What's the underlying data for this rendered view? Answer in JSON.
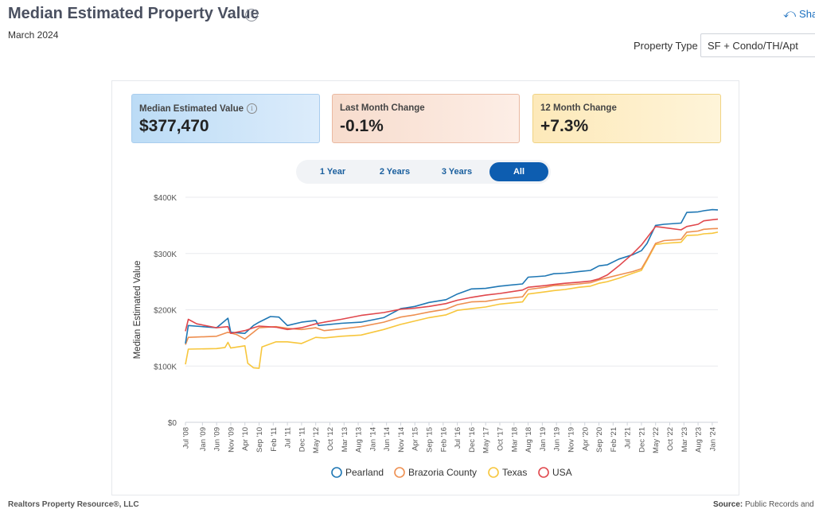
{
  "page": {
    "title": "Median Estimated Property Value",
    "subtitle": "March 2024",
    "share_label": "Sha",
    "property_type_label": "Property Type",
    "property_type_value": "SF + Condo/TH/Apt"
  },
  "cards": [
    {
      "label": "Median Estimated Value",
      "value": "$377,470"
    },
    {
      "label": "Last Month Change",
      "value": "-0.1%"
    },
    {
      "label": "12 Month Change",
      "value": "+7.3%"
    }
  ],
  "range_buttons": [
    "1 Year",
    "2 Years",
    "3 Years",
    "All"
  ],
  "range_active": "All",
  "footer": {
    "left": "Realtors Property Resource®, LLC",
    "right_label": "Source:",
    "right_text": "Public Records and"
  },
  "colors": {
    "Pearland": "#1f77b4",
    "Brazoria County": "#ee8f50",
    "Texas": "#f7c63c",
    "USA": "#e0474c"
  },
  "chart_data": {
    "type": "line",
    "ylabel": "Median Estimated Value",
    "xlabel": "",
    "ylim": [
      0,
      400000
    ],
    "y_ticks": [
      0,
      100000,
      200000,
      300000,
      400000
    ],
    "y_tick_labels": [
      "$0",
      "$100K",
      "$200K",
      "$300K",
      "$400K"
    ],
    "x_tick_labels": [
      "Jul '08",
      "Jan '09",
      "Jun '09",
      "Nov '09",
      "Apr '10",
      "Sep '10",
      "Feb '11",
      "Jul '11",
      "Dec '11",
      "May '12",
      "Oct '12",
      "Mar '13",
      "Aug '13",
      "Jan '14",
      "Jun '14",
      "Nov '14",
      "Apr '15",
      "Sep '15",
      "Feb '16",
      "Jul '16",
      "Dec '16",
      "May '17",
      "Oct '17",
      "Mar '18",
      "Aug '18",
      "Jan '19",
      "Jun '19",
      "Nov '19",
      "Apr '20",
      "Sep '20",
      "Feb '21",
      "Jul '21",
      "Dec '21",
      "May '22",
      "Oct '22",
      "Mar '23",
      "Aug '23",
      "Jan '24"
    ],
    "x_start": "2008-07",
    "x_end": "2024-03",
    "grid": "horizontal",
    "legend": "bottom",
    "series": [
      {
        "name": "Pearland",
        "points": [
          [
            "2008-07",
            140000
          ],
          [
            "2008-08",
            172000
          ],
          [
            "2009-06",
            168000
          ],
          [
            "2009-10",
            185000
          ],
          [
            "2009-11",
            160000
          ],
          [
            "2010-04",
            158000
          ],
          [
            "2010-07",
            172000
          ],
          [
            "2010-09",
            178000
          ],
          [
            "2011-01",
            188000
          ],
          [
            "2011-04",
            187000
          ],
          [
            "2011-07",
            172000
          ],
          [
            "2011-12",
            178000
          ],
          [
            "2012-05",
            181000
          ],
          [
            "2012-06",
            172000
          ],
          [
            "2013-02",
            176000
          ],
          [
            "2013-09",
            178000
          ],
          [
            "2014-05",
            186000
          ],
          [
            "2014-11",
            202000
          ],
          [
            "2015-04",
            206000
          ],
          [
            "2015-09",
            213000
          ],
          [
            "2016-03",
            218000
          ],
          [
            "2016-07",
            228000
          ],
          [
            "2016-12",
            237000
          ],
          [
            "2017-05",
            238000
          ],
          [
            "2017-10",
            242000
          ],
          [
            "2018-06",
            246000
          ],
          [
            "2018-08",
            258000
          ],
          [
            "2019-02",
            260000
          ],
          [
            "2019-05",
            264000
          ],
          [
            "2019-09",
            265000
          ],
          [
            "2020-02",
            268000
          ],
          [
            "2020-06",
            270000
          ],
          [
            "2020-09",
            278000
          ],
          [
            "2020-12",
            280000
          ],
          [
            "2021-04",
            290000
          ],
          [
            "2021-09",
            298000
          ],
          [
            "2021-12",
            305000
          ],
          [
            "2022-02",
            318000
          ],
          [
            "2022-05",
            350000
          ],
          [
            "2022-08",
            352000
          ],
          [
            "2023-02",
            354000
          ],
          [
            "2023-04",
            373000
          ],
          [
            "2023-08",
            374000
          ],
          [
            "2023-10",
            376000
          ],
          [
            "2024-01",
            378000
          ],
          [
            "2024-03",
            377470
          ]
        ]
      },
      {
        "name": "Brazoria County",
        "points": [
          [
            "2008-07",
            138000
          ],
          [
            "2008-08",
            151000
          ],
          [
            "2009-06",
            153000
          ],
          [
            "2009-10",
            160000
          ],
          [
            "2010-01",
            156000
          ],
          [
            "2010-04",
            148000
          ],
          [
            "2010-09",
            168000
          ],
          [
            "2011-03",
            170000
          ],
          [
            "2011-07",
            167000
          ],
          [
            "2011-12",
            165000
          ],
          [
            "2012-05",
            168000
          ],
          [
            "2012-08",
            163000
          ],
          [
            "2013-02",
            166000
          ],
          [
            "2013-09",
            170000
          ],
          [
            "2014-05",
            178000
          ],
          [
            "2014-11",
            187000
          ],
          [
            "2015-04",
            191000
          ],
          [
            "2015-09",
            196000
          ],
          [
            "2016-03",
            201000
          ],
          [
            "2016-07",
            209000
          ],
          [
            "2016-12",
            214000
          ],
          [
            "2017-05",
            215000
          ],
          [
            "2017-10",
            219000
          ],
          [
            "2018-06",
            223000
          ],
          [
            "2018-08",
            236000
          ],
          [
            "2019-02",
            240000
          ],
          [
            "2019-05",
            243000
          ],
          [
            "2019-09",
            244000
          ],
          [
            "2020-02",
            246000
          ],
          [
            "2020-06",
            248000
          ],
          [
            "2020-09",
            253000
          ],
          [
            "2020-12",
            257000
          ],
          [
            "2021-04",
            262000
          ],
          [
            "2021-09",
            268000
          ],
          [
            "2021-12",
            273000
          ],
          [
            "2022-02",
            290000
          ],
          [
            "2022-05",
            318000
          ],
          [
            "2022-08",
            323000
          ],
          [
            "2023-02",
            325000
          ],
          [
            "2023-04",
            338000
          ],
          [
            "2023-08",
            340000
          ],
          [
            "2023-10",
            343000
          ],
          [
            "2024-01",
            344000
          ],
          [
            "2024-03",
            344500
          ]
        ]
      },
      {
        "name": "Texas",
        "points": [
          [
            "2008-07",
            103000
          ],
          [
            "2008-08",
            130000
          ],
          [
            "2009-06",
            131000
          ],
          [
            "2009-09",
            133000
          ],
          [
            "2009-10",
            142000
          ],
          [
            "2009-11",
            132000
          ],
          [
            "2010-04",
            136000
          ],
          [
            "2010-05",
            105000
          ],
          [
            "2010-07",
            97000
          ],
          [
            "2010-09",
            96000
          ],
          [
            "2010-10",
            134000
          ],
          [
            "2011-03",
            143000
          ],
          [
            "2011-07",
            143000
          ],
          [
            "2011-12",
            140000
          ],
          [
            "2012-05",
            151000
          ],
          [
            "2012-08",
            150000
          ],
          [
            "2013-02",
            153000
          ],
          [
            "2013-09",
            155000
          ],
          [
            "2014-05",
            165000
          ],
          [
            "2014-11",
            174000
          ],
          [
            "2015-04",
            180000
          ],
          [
            "2015-09",
            186000
          ],
          [
            "2016-03",
            191000
          ],
          [
            "2016-07",
            199000
          ],
          [
            "2016-12",
            202000
          ],
          [
            "2017-05",
            205000
          ],
          [
            "2017-10",
            210000
          ],
          [
            "2018-06",
            214000
          ],
          [
            "2018-08",
            228000
          ],
          [
            "2019-02",
            232000
          ],
          [
            "2019-05",
            234000
          ],
          [
            "2019-09",
            236000
          ],
          [
            "2020-02",
            240000
          ],
          [
            "2020-06",
            242000
          ],
          [
            "2020-09",
            247000
          ],
          [
            "2020-12",
            250000
          ],
          [
            "2021-04",
            256000
          ],
          [
            "2021-09",
            265000
          ],
          [
            "2021-12",
            270000
          ],
          [
            "2022-02",
            288000
          ],
          [
            "2022-05",
            316000
          ],
          [
            "2022-08",
            318000
          ],
          [
            "2023-02",
            320000
          ],
          [
            "2023-04",
            332000
          ],
          [
            "2023-08",
            333000
          ],
          [
            "2023-10",
            335000
          ],
          [
            "2024-01",
            336000
          ],
          [
            "2024-03",
            338000
          ]
        ]
      },
      {
        "name": "USA",
        "points": [
          [
            "2008-07",
            162000
          ],
          [
            "2008-08",
            183000
          ],
          [
            "2008-11",
            175000
          ],
          [
            "2009-06",
            168000
          ],
          [
            "2009-10",
            170000
          ],
          [
            "2009-11",
            158000
          ],
          [
            "2010-04",
            163000
          ],
          [
            "2010-07",
            168000
          ],
          [
            "2010-09",
            171000
          ],
          [
            "2011-03",
            169000
          ],
          [
            "2011-07",
            165000
          ],
          [
            "2011-12",
            168000
          ],
          [
            "2012-05",
            175000
          ],
          [
            "2012-08",
            178000
          ],
          [
            "2013-02",
            183000
          ],
          [
            "2013-09",
            190000
          ],
          [
            "2014-05",
            195000
          ],
          [
            "2014-11",
            201000
          ],
          [
            "2015-04",
            203000
          ],
          [
            "2015-09",
            206000
          ],
          [
            "2016-03",
            211000
          ],
          [
            "2016-07",
            217000
          ],
          [
            "2016-12",
            222000
          ],
          [
            "2017-05",
            226000
          ],
          [
            "2017-10",
            229000
          ],
          [
            "2018-06",
            235000
          ],
          [
            "2018-08",
            240000
          ],
          [
            "2019-02",
            243000
          ],
          [
            "2019-05",
            245000
          ],
          [
            "2019-09",
            247000
          ],
          [
            "2020-02",
            249000
          ],
          [
            "2020-06",
            251000
          ],
          [
            "2020-09",
            255000
          ],
          [
            "2020-12",
            262000
          ],
          [
            "2021-04",
            278000
          ],
          [
            "2021-09",
            300000
          ],
          [
            "2021-12",
            315000
          ],
          [
            "2022-02",
            328000
          ],
          [
            "2022-05",
            348000
          ],
          [
            "2022-08",
            346000
          ],
          [
            "2023-02",
            342000
          ],
          [
            "2023-04",
            348000
          ],
          [
            "2023-08",
            352000
          ],
          [
            "2023-10",
            358000
          ],
          [
            "2024-01",
            360000
          ],
          [
            "2024-03",
            361000
          ]
        ]
      }
    ]
  }
}
